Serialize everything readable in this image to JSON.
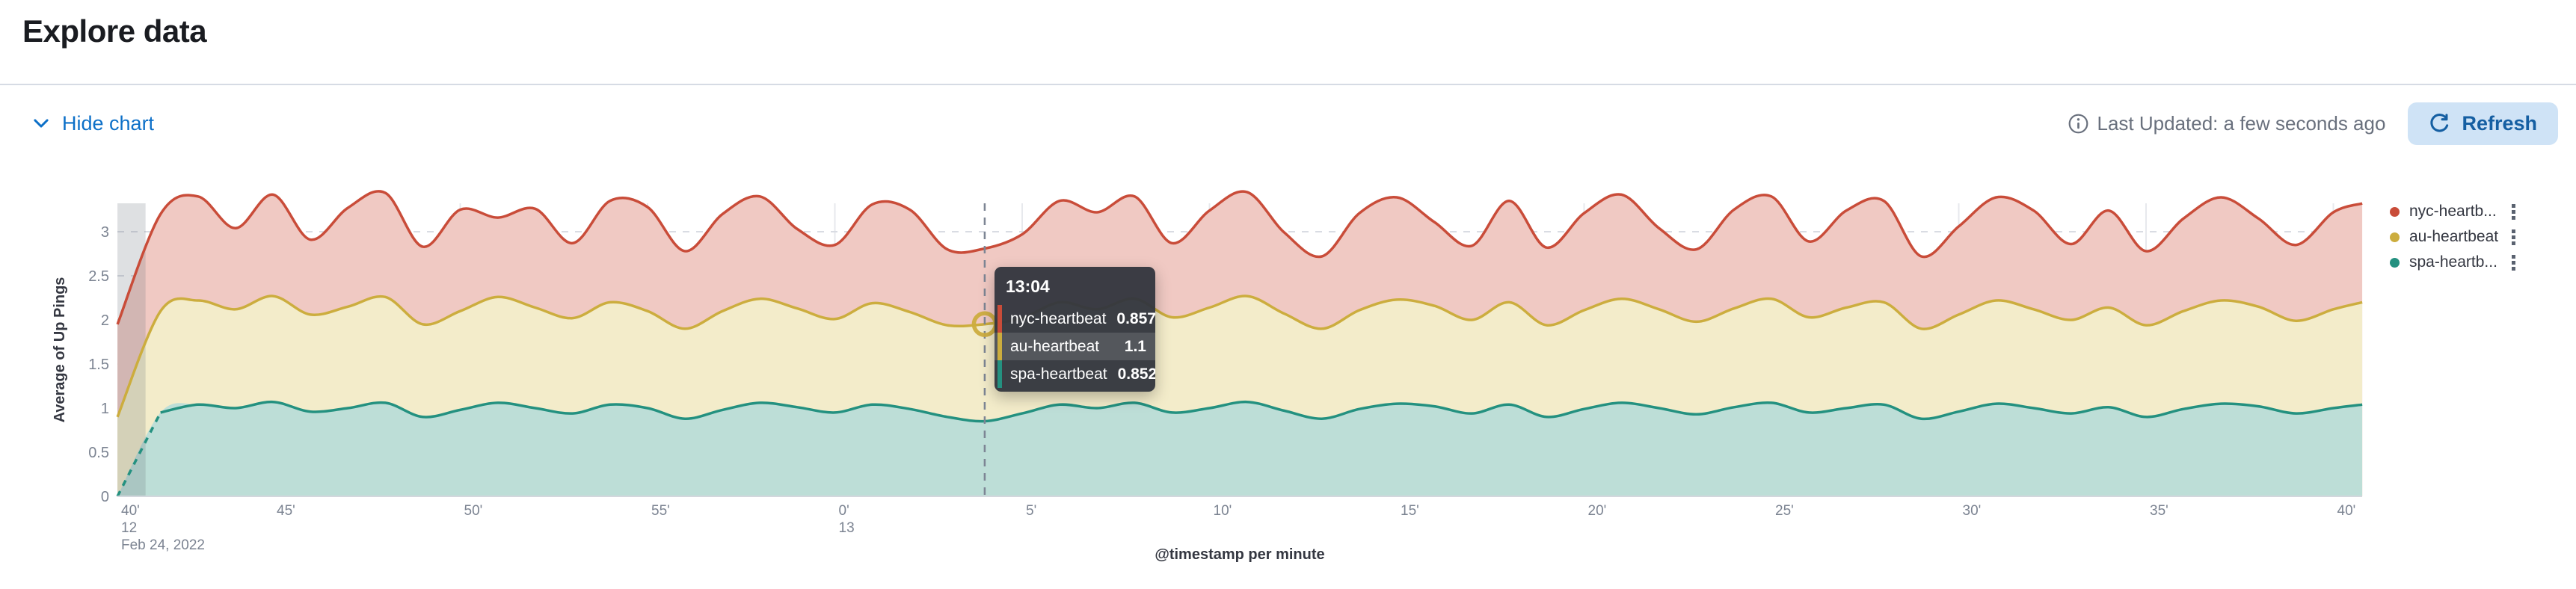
{
  "page": {
    "title": "Explore data"
  },
  "toolbar": {
    "hide_chart_label": "Hide chart",
    "last_updated": "Last Updated: a few seconds ago",
    "refresh_label": "Refresh"
  },
  "colors": {
    "link_blue": "#0d70c8",
    "refresh_bg": "#cfe3f6",
    "refresh_text": "#155fa2",
    "muted_text": "#69707d",
    "dark_text": "#343741",
    "grid_solid": "#e7e9ed",
    "grid_dashed": "#d9dce3",
    "axis_line": "#d3d7dd",
    "partial_band": "rgba(105,112,125,0.22)",
    "cursor": "#7d8594"
  },
  "chart_data": {
    "type": "area",
    "stacked": true,
    "title": "",
    "xlabel": "@timestamp per minute",
    "ylabel": "Average of Up Pings",
    "ylim": [
      0,
      3.4
    ],
    "y_ticks": [
      0,
      0.5,
      1,
      1.5,
      2,
      2.5,
      3
    ],
    "x_unit": "minutes after 12:40, Feb 24 2022",
    "x_ticks": [
      {
        "t": 0,
        "label": "40'",
        "sub": "12",
        "sub2": "Feb 24, 2022"
      },
      {
        "t": 5,
        "label": "45'"
      },
      {
        "t": 10,
        "label": "50'"
      },
      {
        "t": 15,
        "label": "55'"
      },
      {
        "t": 20,
        "label": "0'",
        "sub": "13"
      },
      {
        "t": 25,
        "label": "5'"
      },
      {
        "t": 30,
        "label": "10'"
      },
      {
        "t": 35,
        "label": "15'"
      },
      {
        "t": 40,
        "label": "20'"
      },
      {
        "t": 45,
        "label": "25'"
      },
      {
        "t": 50,
        "label": "30'"
      },
      {
        "t": 55,
        "label": "35'"
      },
      {
        "t": 60,
        "label": "40'"
      }
    ],
    "x_minutes": [
      0.85,
      2,
      3,
      4,
      5,
      6,
      7,
      8,
      9,
      10,
      11,
      12,
      13,
      14,
      15,
      16,
      17,
      18,
      19,
      20,
      21,
      22,
      23,
      24,
      25,
      26,
      27,
      28,
      29,
      30,
      31,
      32,
      33,
      34,
      35,
      36,
      37,
      38,
      39,
      40,
      41,
      42,
      43,
      44,
      45,
      46,
      47,
      48,
      49,
      50,
      51,
      52,
      53,
      54,
      55,
      56,
      57,
      58,
      59,
      60,
      60.77
    ],
    "series": [
      {
        "name": "spa-heartbeat",
        "legend_label": "spa-heartb...",
        "color": "#249180",
        "fill": "#BDDED7",
        "values": [
          0,
          0.95,
          1.04,
          1.0,
          1.07,
          0.96,
          1.0,
          1.06,
          0.9,
          0.98,
          1.06,
          1.0,
          0.94,
          1.04,
          1.0,
          0.88,
          0.98,
          1.06,
          1.01,
          0.95,
          1.04,
          0.99,
          0.9,
          0.852,
          0.94,
          1.04,
          1.0,
          1.06,
          0.95,
          1.0,
          1.07,
          0.97,
          0.88,
          0.99,
          1.05,
          1.02,
          0.94,
          1.04,
          0.9,
          0.99,
          1.06,
          1.0,
          0.93,
          1.01,
          1.06,
          0.95,
          1.0,
          1.04,
          0.88,
          0.96,
          1.05,
          1.0,
          0.94,
          1.01,
          0.9,
          0.99,
          1.05,
          1.02,
          0.94,
          1.0,
          1.04
        ]
      },
      {
        "name": "au-heartbeat",
        "legend_label": "au-heartbeat",
        "color": "#CCAD3E",
        "fill": "#F3ECCA",
        "values": [
          0.9,
          1.15,
          1.18,
          1.12,
          1.2,
          1.1,
          1.15,
          1.2,
          1.05,
          1.12,
          1.2,
          1.14,
          1.08,
          1.16,
          1.1,
          1.02,
          1.12,
          1.18,
          1.12,
          1.06,
          1.15,
          1.1,
          1.04,
          1.1,
          1.08,
          1.16,
          1.12,
          1.18,
          1.08,
          1.14,
          1.2,
          1.1,
          1.02,
          1.12,
          1.18,
          1.14,
          1.06,
          1.16,
          1.04,
          1.12,
          1.18,
          1.12,
          1.05,
          1.12,
          1.18,
          1.08,
          1.14,
          1.16,
          1.02,
          1.1,
          1.17,
          1.12,
          1.06,
          1.13,
          1.04,
          1.11,
          1.17,
          1.13,
          1.05,
          1.12,
          1.16
        ]
      },
      {
        "name": "nyc-heartbeat",
        "legend_label": "nyc-heartb...",
        "color": "#C94C39",
        "fill": "#F0C9C3",
        "values": [
          1.05,
          1.1,
          1.18,
          0.92,
          1.15,
          0.85,
          1.12,
          1.18,
          0.88,
          1.15,
          0.9,
          1.12,
          0.85,
          1.15,
          1.18,
          0.88,
          1.1,
          1.16,
          0.9,
          0.84,
          1.12,
          1.16,
          0.86,
          0.857,
          0.95,
          1.15,
          1.1,
          1.16,
          0.84,
          1.1,
          1.18,
          0.92,
          0.82,
          1.1,
          1.16,
          0.95,
          0.84,
          1.15,
          0.88,
          1.1,
          1.18,
          0.92,
          0.82,
          1.12,
          1.16,
          0.86,
          1.1,
          1.15,
          0.82,
          1.0,
          1.17,
          1.12,
          0.86,
          1.1,
          0.84,
          1.05,
          1.17,
          1.0,
          0.86,
          1.1,
          1.12
        ]
      }
    ],
    "legend_order": [
      "nyc-heartbeat",
      "au-heartbeat",
      "spa-heartbeat"
    ],
    "legend_position": "right",
    "grid": true,
    "partial_band_minutes": [
      0.85,
      1.6
    ],
    "dashed_start_series": "spa-heartbeat",
    "tooltip": {
      "time": "13:04",
      "t": 24,
      "rows": [
        {
          "series": "nyc-heartbeat",
          "value": "0.857",
          "highlight": false
        },
        {
          "series": "au-heartbeat",
          "value": "1.1",
          "highlight": true
        },
        {
          "series": "spa-heartbeat",
          "value": "0.852",
          "highlight": false
        }
      ],
      "marker_series": "au-heartbeat"
    }
  }
}
